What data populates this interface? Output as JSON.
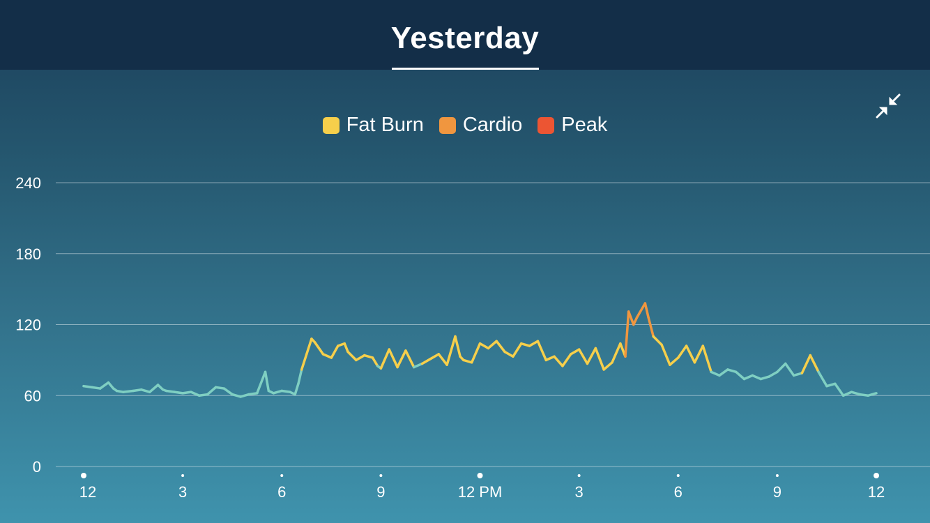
{
  "header": {
    "title": "Yesterday"
  },
  "icons": {
    "collapse": "collapse-arrows-icon"
  },
  "colors": {
    "resting": "#7fcfc2",
    "fat_burn": "#f6cf4b",
    "cardio": "#f0963f",
    "peak": "#ec5533"
  },
  "chart_data": {
    "type": "line",
    "legend": [
      {
        "name": "Fat Burn",
        "color": "#f6cf4b"
      },
      {
        "name": "Cardio",
        "color": "#f0963f"
      },
      {
        "name": "Peak",
        "color": "#ec5533"
      }
    ],
    "legend_position": "top-center",
    "y_ticks": [
      "240",
      "180",
      "120",
      "60",
      "0"
    ],
    "y_tick_values": [
      240,
      180,
      120,
      60,
      0
    ],
    "ylim": [
      0,
      240
    ],
    "x_ticks": [
      "12",
      "3",
      "6",
      "9",
      "12 PM",
      "3",
      "6",
      "9",
      "12"
    ],
    "x_tick_hours": [
      0,
      3,
      6,
      9,
      12,
      15,
      18,
      21,
      24
    ],
    "xlim_hours": [
      0,
      24
    ],
    "grid": true,
    "series": [
      {
        "x_hours": [
          0,
          0.25,
          0.5,
          0.75,
          0.9,
          1.0,
          1.2,
          1.5,
          1.75,
          2.0,
          2.25,
          2.4,
          2.5,
          2.75,
          3.0,
          3.25,
          3.5,
          3.75,
          4.0,
          4.25,
          4.4,
          4.5,
          4.75,
          5.0,
          5.25,
          5.5,
          5.6,
          5.75,
          6.0,
          6.25,
          6.4,
          6.5,
          6.6,
          6.75,
          6.9,
          7.0,
          7.25,
          7.5,
          7.7,
          7.9,
          8.0,
          8.25,
          8.5,
          8.75,
          8.9,
          9.0,
          9.25,
          9.4,
          9.5,
          9.75,
          10.0,
          10.25,
          10.5,
          10.75,
          11.0,
          11.25,
          11.4,
          11.5,
          11.75,
          12.0,
          12.25,
          12.5,
          12.75,
          13.0,
          13.25,
          13.5,
          13.75,
          14.0,
          14.25,
          14.5,
          14.75,
          15.0,
          15.25,
          15.5,
          15.75,
          16.0,
          16.25,
          16.4,
          16.5,
          16.65,
          16.75,
          17.0,
          17.1,
          17.25,
          17.5,
          17.75,
          18.0,
          18.25,
          18.5,
          18.75,
          19.0,
          19.25,
          19.5,
          19.75,
          20.0,
          20.25,
          20.5,
          20.75,
          21.0,
          21.25,
          21.5,
          21.75,
          22.0,
          22.25,
          22.5,
          22.75,
          23.0,
          23.25,
          23.5,
          23.75,
          24.0
        ],
        "bpm": [
          68,
          67,
          66,
          71,
          66,
          64,
          63,
          64,
          65,
          63,
          69,
          65,
          64,
          63,
          62,
          63,
          60,
          61,
          67,
          66,
          63,
          61,
          59,
          61,
          62,
          80,
          64,
          62,
          64,
          63,
          61,
          70,
          82,
          95,
          108,
          105,
          95,
          92,
          102,
          104,
          97,
          90,
          94,
          92,
          85,
          83,
          99,
          90,
          84,
          98,
          84,
          87,
          91,
          95,
          86,
          110,
          93,
          90,
          88,
          104,
          100,
          106,
          97,
          93,
          104,
          102,
          106,
          90,
          93,
          85,
          95,
          99,
          87,
          100,
          82,
          88,
          104,
          93,
          131,
          120,
          126,
          138,
          126,
          110,
          103,
          86,
          92,
          102,
          88,
          102,
          80,
          77,
          82,
          80,
          74,
          77,
          74,
          76,
          80,
          87,
          77,
          79,
          94,
          80,
          68,
          70,
          60,
          63,
          61,
          60,
          62
        ],
        "zone_limits": {
          "fat_burn": 88,
          "cardio": 126,
          "peak": 155
        }
      }
    ]
  }
}
